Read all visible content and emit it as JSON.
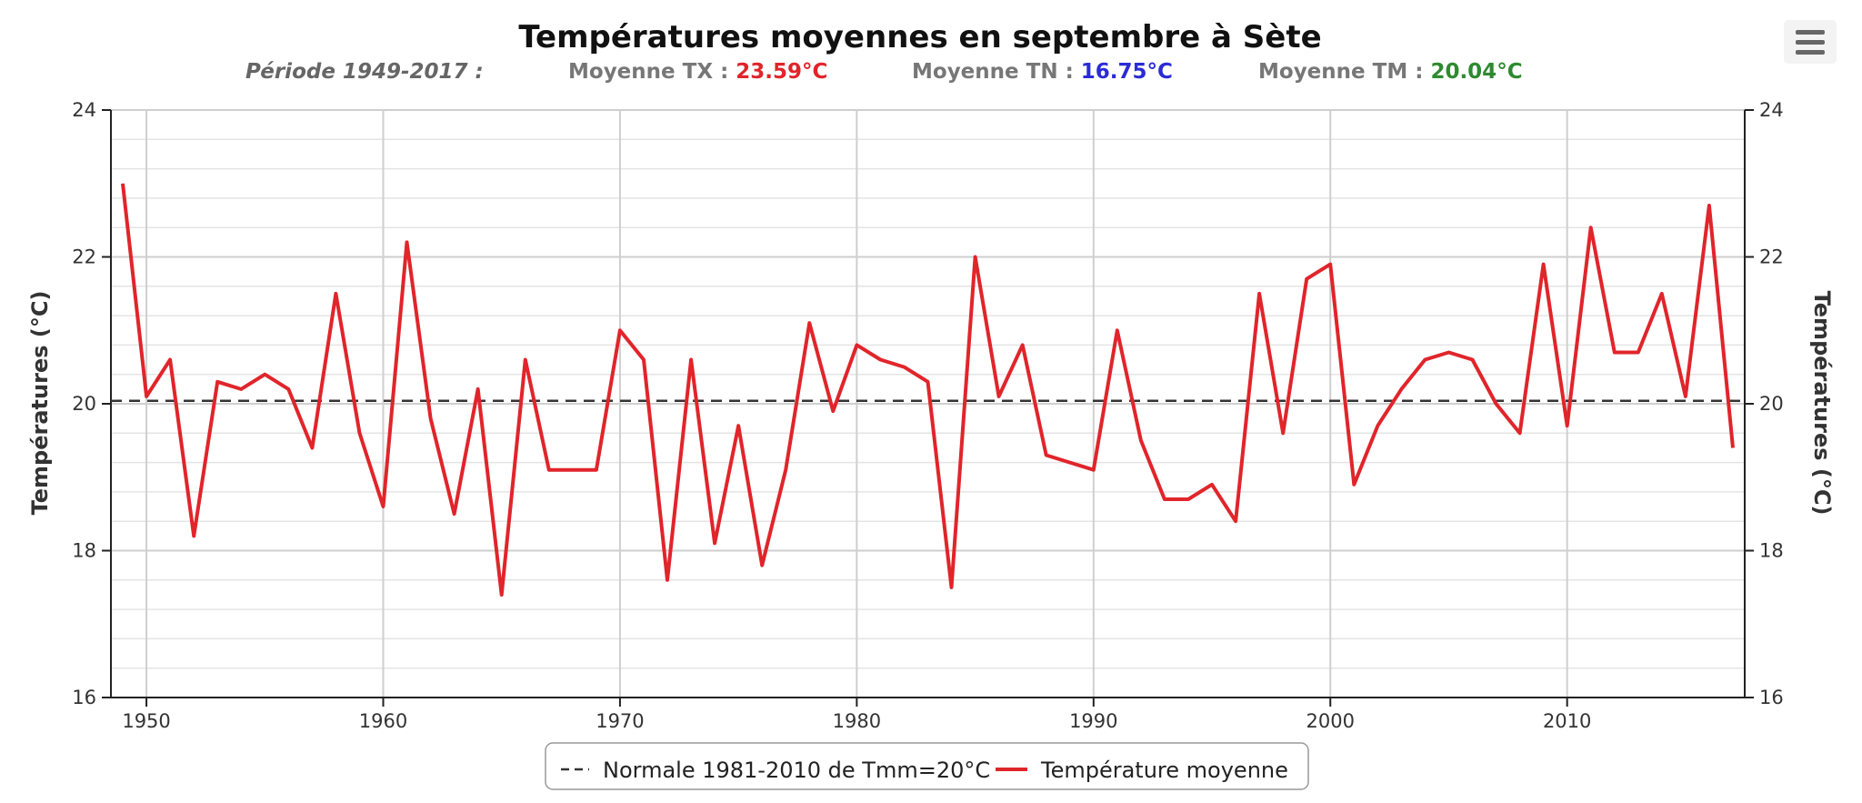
{
  "chart_data": {
    "type": "line",
    "title": "Températures moyennes en septembre à Sète",
    "subtitle": {
      "period": "Période 1949-2017 :",
      "tx_label": "Moyenne TX : ",
      "tx_value": "23.59°C",
      "tn_label": "Moyenne TN : ",
      "tn_value": "16.75°C",
      "tm_label": "Moyenne TM : ",
      "tm_value": "20.04°C"
    },
    "ylabel_left": "Températures (°C)",
    "ylabel_right": "Températures (°C)",
    "xlim": [
      1948.5,
      2017.5
    ],
    "ylim": [
      16,
      24
    ],
    "x_ticks": [
      1950,
      1960,
      1970,
      1980,
      1990,
      2000,
      2010
    ],
    "y_ticks": [
      16,
      18,
      20,
      22,
      24
    ],
    "grid": true,
    "legend_position": "bottom-center",
    "series": [
      {
        "name": "Normale 1981-2010 de Tmm=20°C",
        "style": "dashed",
        "color": "#333333",
        "x": [
          1948.5,
          2017.5
        ],
        "values": [
          20.04,
          20.04
        ]
      },
      {
        "name": "Température moyenne",
        "style": "solid",
        "color": "#e0252b",
        "x": [
          1949,
          1950,
          1951,
          1952,
          1953,
          1954,
          1955,
          1956,
          1957,
          1958,
          1959,
          1960,
          1961,
          1962,
          1963,
          1964,
          1965,
          1966,
          1967,
          1968,
          1969,
          1970,
          1971,
          1972,
          1973,
          1974,
          1975,
          1976,
          1977,
          1978,
          1979,
          1980,
          1981,
          1982,
          1983,
          1984,
          1985,
          1986,
          1987,
          1988,
          1989,
          1990,
          1991,
          1992,
          1993,
          1994,
          1995,
          1996,
          1997,
          1998,
          1999,
          2000,
          2001,
          2002,
          2003,
          2004,
          2005,
          2006,
          2007,
          2008,
          2009,
          2010,
          2011,
          2012,
          2013,
          2014,
          2015,
          2016,
          2017
        ],
        "values": [
          23.0,
          20.1,
          20.6,
          18.2,
          20.3,
          20.2,
          20.4,
          20.2,
          19.4,
          21.5,
          19.6,
          18.6,
          22.2,
          19.8,
          18.5,
          20.2,
          17.4,
          20.6,
          19.1,
          19.1,
          19.1,
          21.0,
          20.6,
          17.6,
          20.6,
          18.1,
          19.7,
          17.8,
          19.1,
          21.1,
          19.9,
          20.8,
          20.6,
          20.5,
          20.3,
          17.5,
          22.0,
          20.1,
          20.8,
          19.3,
          19.2,
          19.1,
          21.0,
          19.5,
          18.7,
          18.7,
          18.9,
          18.4,
          21.5,
          19.6,
          21.7,
          21.9,
          18.9,
          19.7,
          20.2,
          20.6,
          20.7,
          20.6,
          20.0,
          19.6,
          21.9,
          19.7,
          22.4,
          20.7,
          20.7,
          21.5,
          20.1,
          22.7,
          19.4
        ]
      }
    ]
  },
  "colors": {
    "tx": "#e0252b",
    "tn": "#2b2bd6",
    "tm": "#2f8a2f",
    "line": "#e0252b",
    "normal": "#333333"
  },
  "menu_icon": "hamburger-menu-icon"
}
